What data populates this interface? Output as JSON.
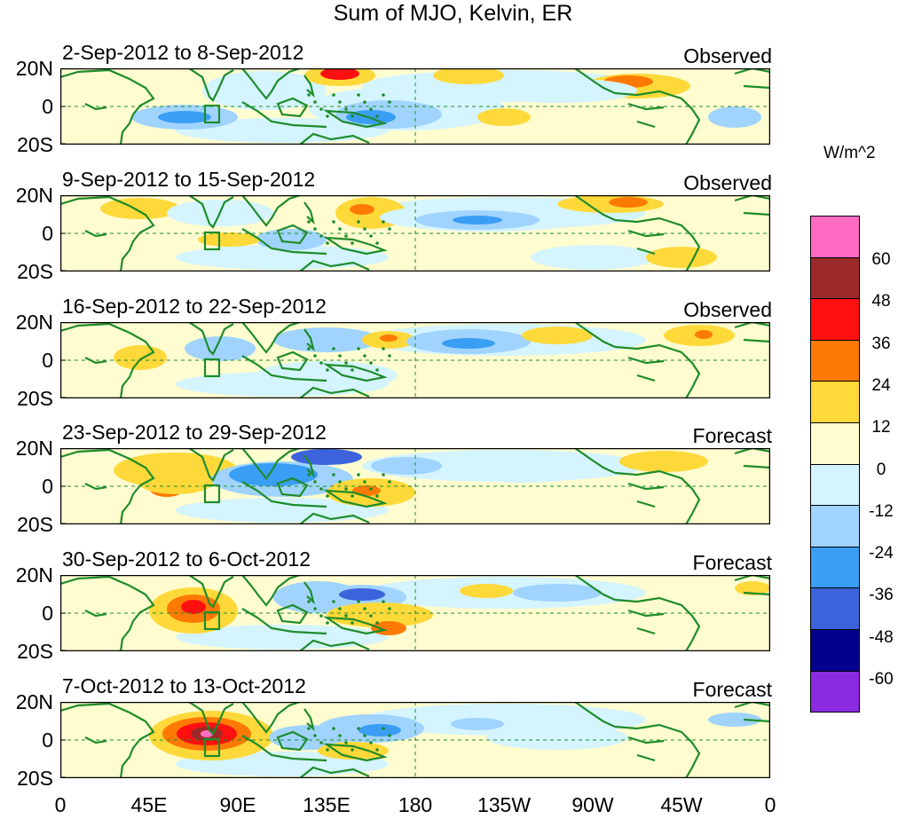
{
  "title": "Sum of MJO, Kelvin, ER",
  "colors": {
    "land": "#1e8c2a",
    "base": "#fffcd0",
    "neg12": "#d4f4ff",
    "neg24": "#a0d4ff",
    "neg36": "#3a9ef5",
    "neg48": "#3d63dc",
    "neg60": "#02018e",
    "negmax": "#8a2be2",
    "pos12": "#fffcd0",
    "pos24": "#ffd93a",
    "pos36": "#ff7a05",
    "pos48": "#ff1010",
    "pos60": "#9b2a28",
    "posmax": "#ff6bc3"
  },
  "panels": [
    {
      "title": "2-Sep-2012 to 8-Sep-2012",
      "label": "Observed"
    },
    {
      "title": "9-Sep-2012 to 15-Sep-2012",
      "label": "Observed"
    },
    {
      "title": "16-Sep-2012 to 22-Sep-2012",
      "label": "Observed"
    },
    {
      "title": "23-Sep-2012 to 29-Sep-2012",
      "label": "Forecast"
    },
    {
      "title": "30-Sep-2012 to 6-Oct-2012",
      "label": "Forecast"
    },
    {
      "title": "7-Oct-2012 to 13-Oct-2012",
      "label": "Forecast"
    }
  ],
  "lat_labels": [
    "20N",
    "0",
    "20S"
  ],
  "lon_labels": [
    "0",
    "45E",
    "90E",
    "135E",
    "180",
    "135W",
    "90W",
    "45W",
    "0"
  ],
  "colorbar": {
    "title": "W/m^2",
    "labels": [
      "60",
      "48",
      "36",
      "24",
      "12",
      "0",
      "-12",
      "-24",
      "-36",
      "-48",
      "-60"
    ],
    "swatches": [
      "#ff6bc3",
      "#9b2a28",
      "#ff1010",
      "#ff7a05",
      "#ffd93a",
      "#fffcd0",
      "#d4f4ff",
      "#a0d4ff",
      "#3a9ef5",
      "#3d63dc",
      "#02018e",
      "#8a2be2"
    ]
  }
}
